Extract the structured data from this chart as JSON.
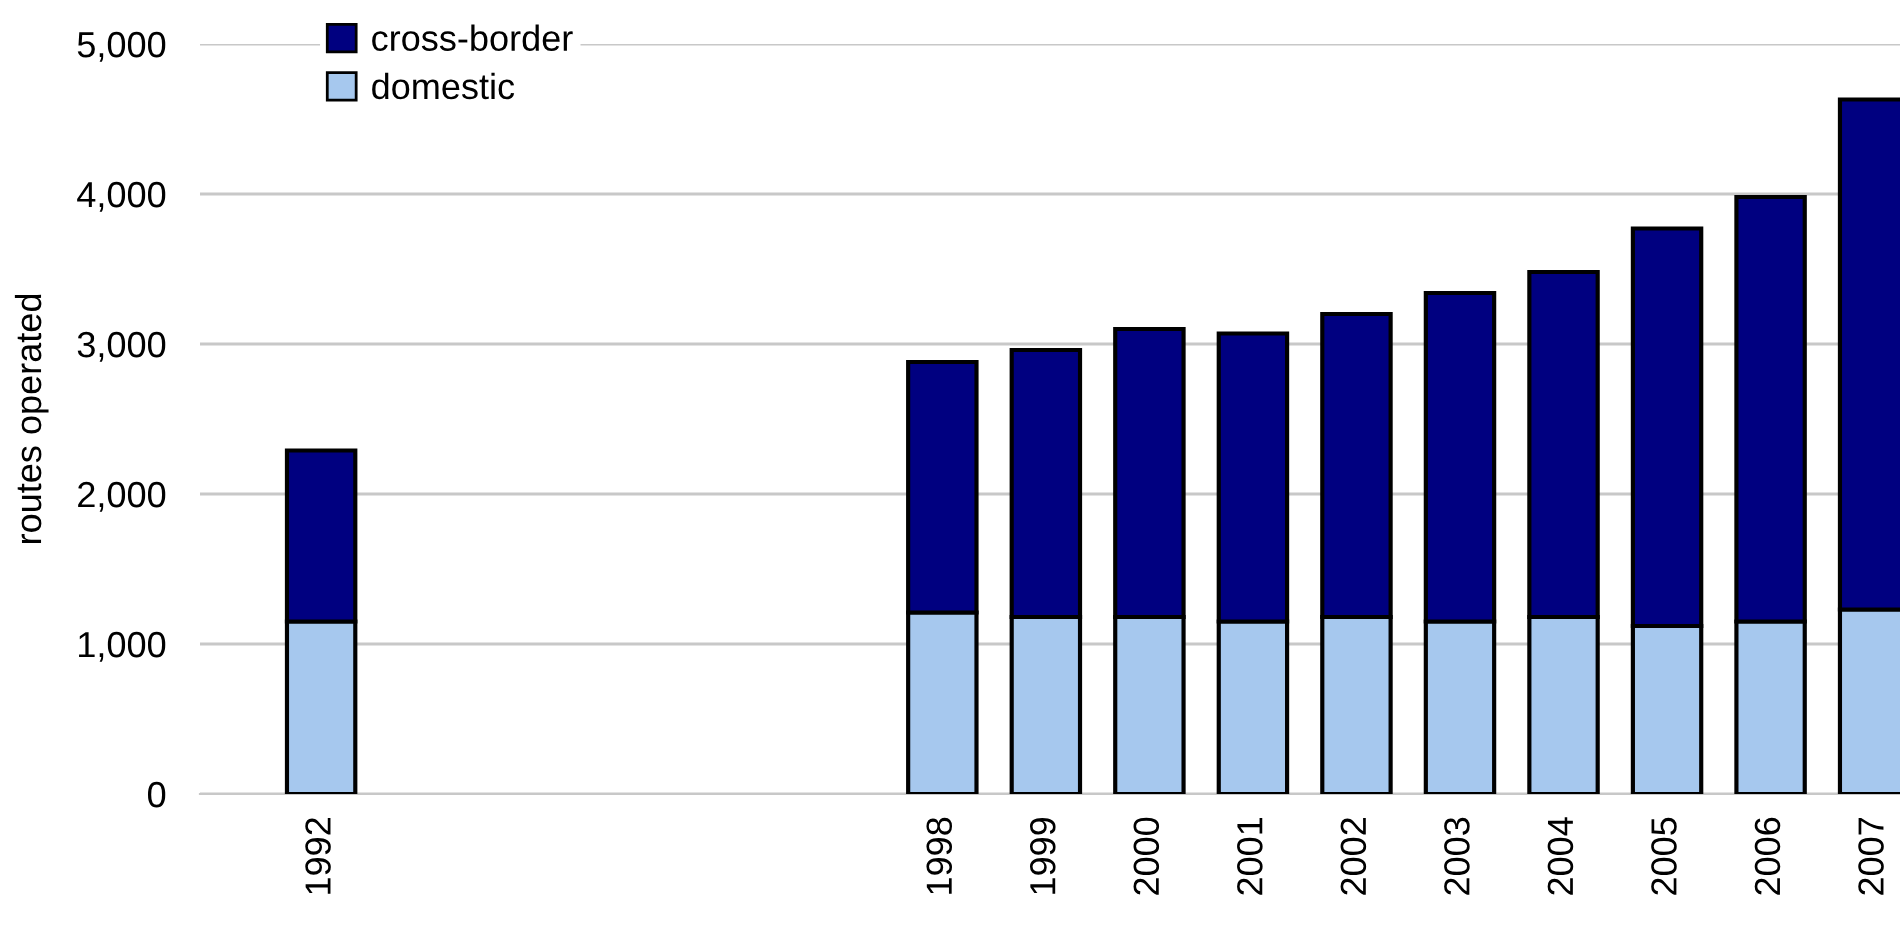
{
  "chart_data": {
    "type": "bar",
    "stacked": true,
    "ylabel": "routes operated",
    "categories": [
      "1992",
      null,
      null,
      null,
      null,
      null,
      "1998",
      "1999",
      "2000",
      "2001",
      "2002",
      "2003",
      "2004",
      "2005",
      "2006",
      "2007"
    ],
    "series": [
      {
        "name": "domestic",
        "color": "#a6c8ee",
        "values": [
          1150,
          null,
          null,
          null,
          null,
          null,
          1210,
          1180,
          1180,
          1150,
          1180,
          1150,
          1180,
          1120,
          1150,
          1230
        ]
      },
      {
        "name": "cross-border",
        "color": "#000080",
        "values": [
          1140,
          null,
          null,
          null,
          null,
          null,
          1670,
          1780,
          1920,
          1920,
          2020,
          2190,
          2300,
          2650,
          2830,
          3400
        ]
      }
    ],
    "ylim": [
      0,
      5000
    ],
    "yticks": [
      {
        "value": 0,
        "label": "0"
      },
      {
        "value": 1000,
        "label": "1,000"
      },
      {
        "value": 2000,
        "label": "2,000"
      },
      {
        "value": 3000,
        "label": "3,000"
      },
      {
        "value": 4000,
        "label": "4,000"
      },
      {
        "value": 5000,
        "label": "5,000"
      }
    ],
    "grid": "y",
    "legend": "top left"
  }
}
